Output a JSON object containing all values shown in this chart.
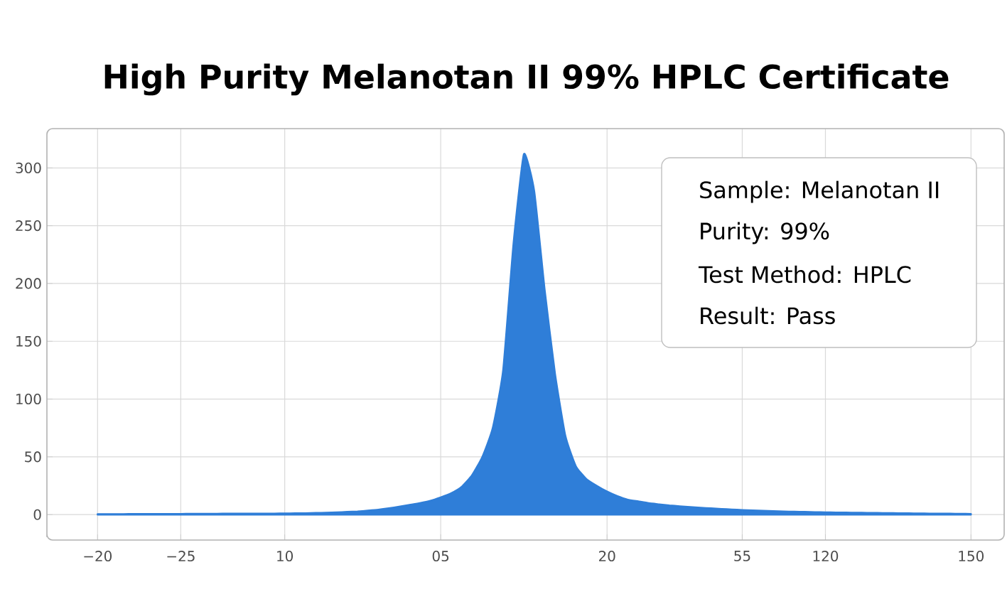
{
  "chart_data": {
    "type": "area",
    "title": "High Purity Melanotan II 99% HPLC Certificate",
    "categories": [
      "−20",
      null,
      null,
      null,
      null,
      null,
      null,
      null,
      "−25",
      null,
      null,
      null,
      null,
      null,
      null,
      null,
      null,
      null,
      "10",
      null,
      null,
      null,
      null,
      null,
      null,
      null,
      null,
      null,
      null,
      null,
      null,
      null,
      null,
      "05",
      null,
      null,
      null,
      null,
      null,
      null,
      null,
      null,
      null,
      null,
      null,
      null,
      null,
      null,
      null,
      "20",
      null,
      null,
      null,
      null,
      null,
      null,
      null,
      null,
      null,
      null,
      null,
      null,
      "55",
      null,
      null,
      null,
      null,
      null,
      null,
      null,
      "120",
      null,
      null,
      null,
      null,
      null,
      null,
      null,
      null,
      null,
      null,
      null,
      null,
      null,
      "150"
    ],
    "values": [
      0.5,
      0.5,
      0.5,
      0.6,
      0.6,
      0.6,
      0.7,
      0.7,
      0.7,
      0.8,
      0.8,
      0.8,
      0.9,
      0.9,
      0.9,
      1,
      1,
      1,
      1.1,
      1.2,
      1.3,
      1.5,
      1.7,
      2,
      2.4,
      2.8,
      3.5,
      4.3,
      5.5,
      7,
      8.5,
      10,
      12,
      15,
      18.5,
      24,
      34,
      50,
      75,
      125,
      235,
      312,
      280,
      195,
      122,
      68,
      42,
      31,
      25,
      20,
      16,
      13,
      11.5,
      10,
      9,
      8,
      7.3,
      6.7,
      6,
      5.5,
      5,
      4.5,
      4,
      3.7,
      3.4,
      3.1,
      2.8,
      2.6,
      2.4,
      2.2,
      2,
      1.9,
      1.8,
      1.7,
      1.6,
      1.5,
      1.4,
      1.3,
      1.2,
      1.1,
      1,
      0.9,
      0.9,
      0.8,
      0.7
    ],
    "color": "#2f7ed8",
    "ylim": [
      -22,
      334
    ],
    "yticks": [
      0,
      50,
      100,
      150,
      200,
      250,
      300
    ],
    "grid": true,
    "annotations": [
      "Sample: Melanotan II",
      "Purity: 99%",
      "Test Method: HPLC",
      "Result: Pass"
    ]
  }
}
